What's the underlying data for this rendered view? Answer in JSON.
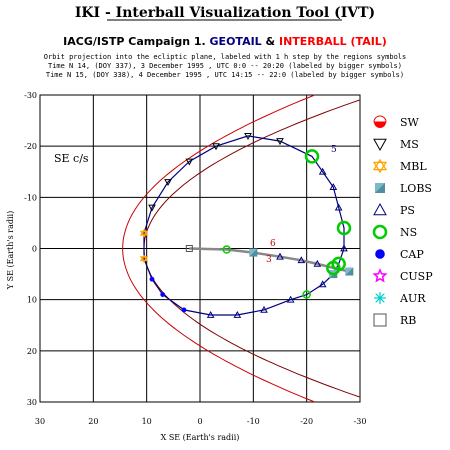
{
  "header": {
    "title": "IKI - Interball Visualization Tool (IVT)",
    "campaign": "IACG/ISTP Campaign 1.",
    "geotail": "GEOTAIL",
    "amp": "&",
    "interball": "INTERBALL (TAIL)",
    "line1": "Orbit projection into the ecliptic plane, labeled with 1 h step by the regions symbols",
    "line2": "Time N 14, (DOY 337), 3 December 1995 , UTC 0:0 -- 20:20 (labeled by bigger symbols)",
    "line3": "Time N 15, (DOY 338), 4 December 1995 , UTC 14:15 -- 22:0 (labeled by bigger symbols)"
  },
  "colors": {
    "geotail": "#000080",
    "interball": "#ff0000",
    "boundary": "#cc0000",
    "boundary2": "#800000",
    "orbit_ticks": "#000080",
    "grid": "#000000",
    "sw": "#ff0000",
    "ms": "#000000",
    "mbl": "#ffa500",
    "lobs": "#4f8fa0",
    "ps": "#000080",
    "ns": "#00cc00",
    "cap": "#0000ff",
    "cusp": "#ff00ff",
    "aur": "#00cccc",
    "rb": "#555555"
  },
  "plot": {
    "corner_label": "SE c/s",
    "label_5": "5",
    "label_6": "6",
    "label_3": "3"
  },
  "chart_data": {
    "type": "scatter",
    "title": "Orbit projection into the ecliptic plane",
    "xlabel": "X SE (Earth's radii)",
    "ylabel": "Y SE (Earth's radii)",
    "xlim": [
      30,
      -30
    ],
    "ylim": [
      -30,
      30
    ],
    "x_ticks": [
      "30",
      "20",
      "10",
      "0",
      "-10",
      "-20",
      "-30"
    ],
    "y_ticks": [
      "-30",
      "-20",
      "-10",
      "0",
      "10",
      "20",
      "30"
    ],
    "grid": true,
    "legend_position": "right",
    "legend": [
      {
        "key": "sw",
        "label": "SW",
        "icon": "sw-half-circle-icon"
      },
      {
        "key": "ms",
        "label": "MS",
        "icon": "down-triangle-icon"
      },
      {
        "key": "mbl",
        "label": "MBL",
        "icon": "star-of-david-icon"
      },
      {
        "key": "lobs",
        "label": "LOBS",
        "icon": "shaded-square-icon"
      },
      {
        "key": "ps",
        "label": "PS",
        "icon": "up-triangle-icon"
      },
      {
        "key": "ns",
        "label": "NS",
        "icon": "circle-icon"
      },
      {
        "key": "cap",
        "label": "CAP",
        "icon": "filled-dot-icon"
      },
      {
        "key": "cusp",
        "label": "CUSP",
        "icon": "star-icon"
      },
      {
        "key": "aur",
        "label": "AUR",
        "icon": "asterisk-icon"
      },
      {
        "key": "rb",
        "label": "RB",
        "icon": "open-square-icon"
      }
    ],
    "series": [
      {
        "name": "GEOTAIL",
        "points": [
          {
            "x": -21,
            "y": -18,
            "r": "ns"
          },
          {
            "x": -23,
            "y": -15,
            "r": "ps"
          },
          {
            "x": -25,
            "y": -12,
            "r": "ps"
          },
          {
            "x": -26,
            "y": -8,
            "r": "ps"
          },
          {
            "x": -27,
            "y": -4,
            "r": "ns"
          },
          {
            "x": -27,
            "y": 0,
            "r": "ps"
          },
          {
            "x": -26,
            "y": 3,
            "r": "ns"
          },
          {
            "x": -25,
            "y": 5,
            "r": "lobs"
          },
          {
            "x": -23,
            "y": 7,
            "r": "ps"
          },
          {
            "x": -20,
            "y": 9,
            "r": "ns"
          },
          {
            "x": -17,
            "y": 10,
            "r": "ps"
          },
          {
            "x": -12,
            "y": 12,
            "r": "ps"
          },
          {
            "x": -7,
            "y": 13,
            "r": "ps"
          },
          {
            "x": -2,
            "y": 13,
            "r": "ps"
          },
          {
            "x": 3,
            "y": 12,
            "r": "cap"
          },
          {
            "x": 7,
            "y": 9,
            "r": "cap"
          },
          {
            "x": 9,
            "y": 6,
            "r": "cap"
          },
          {
            "x": 10.5,
            "y": 2,
            "r": "mbl"
          },
          {
            "x": 10.5,
            "y": -3,
            "r": "mbl"
          },
          {
            "x": 9,
            "y": -8,
            "r": "ms"
          },
          {
            "x": 6,
            "y": -13,
            "r": "ms"
          },
          {
            "x": 2,
            "y": -17,
            "r": "ms"
          },
          {
            "x": -3,
            "y": -20,
            "r": "ms"
          },
          {
            "x": -9,
            "y": -22,
            "r": "ms"
          },
          {
            "x": -15,
            "y": -21,
            "r": "ms"
          }
        ]
      },
      {
        "name": "INTERBALL (TAIL)",
        "points": [
          {
            "x": 2,
            "y": 0,
            "r": "rb"
          },
          {
            "x": -5,
            "y": 0.2,
            "r": "ns"
          },
          {
            "x": -10,
            "y": 0.8,
            "r": "lobs"
          },
          {
            "x": -15,
            "y": 1.6,
            "r": "ps"
          },
          {
            "x": -19,
            "y": 2.3,
            "r": "ps"
          },
          {
            "x": -22,
            "y": 3.0,
            "r": "ps"
          },
          {
            "x": -25,
            "y": 3.8,
            "r": "ns"
          },
          {
            "x": -28,
            "y": 4.5,
            "r": "lobs"
          }
        ]
      }
    ]
  }
}
